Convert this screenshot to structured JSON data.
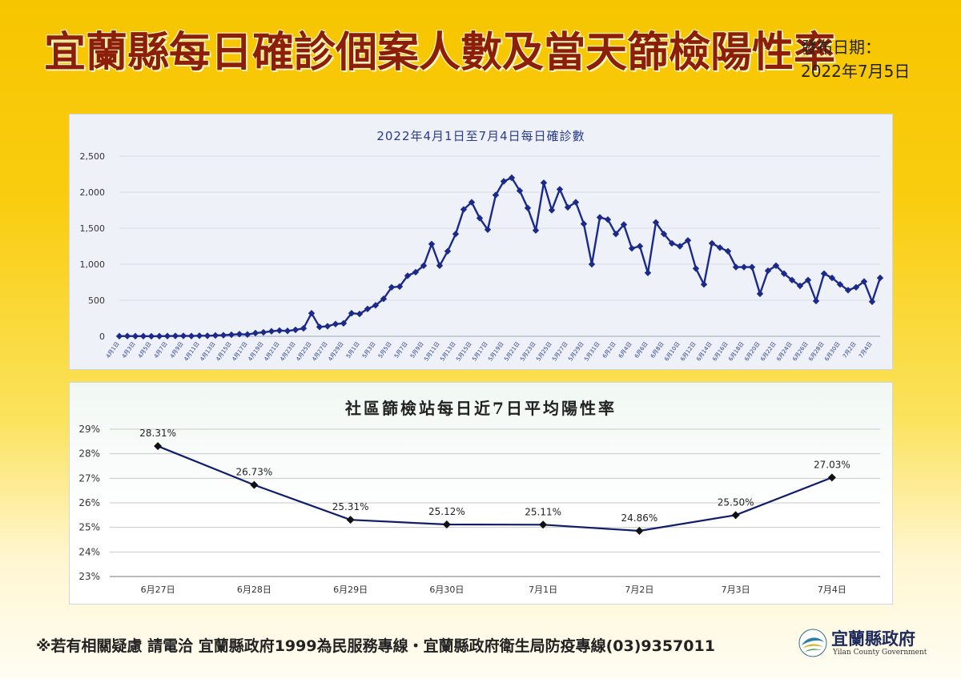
{
  "header": {
    "title": "宜蘭縣每日確診個案人數及當天篩檢陽性率",
    "publish_label": "發布日期：",
    "publish_date": "2022年7月5日"
  },
  "footer": {
    "contact": "※若有相關疑慮 請電洽  宜蘭縣政府1999為民服務專線・宜蘭縣政府衛生局防疫專線(03)9357011",
    "logo_cn": "宜蘭縣政府",
    "logo_en": "Yilan County Government"
  },
  "colors": {
    "series_line": "#1b2a8a",
    "series_marker": "#1b2a8a",
    "positivity_line": "#0f1d6b"
  },
  "chart_data": [
    {
      "type": "line",
      "title": "2022年4月1日至7月4日每日確診數",
      "ylim": [
        0,
        2500
      ],
      "yticks": [
        0,
        500,
        1000,
        1500,
        2000,
        2500
      ],
      "ytick_labels": [
        "0",
        "500",
        "1,000",
        "1,500",
        "2,000",
        "2,500"
      ],
      "grid": true,
      "x_tick_labels": [
        "4月1日",
        "4月3日",
        "4月5日",
        "4月7日",
        "4月9日",
        "4月11日",
        "4月13日",
        "4月15日",
        "4月17日",
        "4月19日",
        "4月21日",
        "4月23日",
        "4月25日",
        "4月27日",
        "4月29日",
        "5月1日",
        "5月3日",
        "5月5日",
        "5月7日",
        "5月9日",
        "5月11日",
        "5月13日",
        "5月15日",
        "5月17日",
        "5月19日",
        "5月21日",
        "5月23日",
        "5月25日",
        "5月27日",
        "5月29日",
        "5月31日",
        "6月2日",
        "6月4日",
        "6月6日",
        "6月8日",
        "6月10日",
        "6月12日",
        "6月14日",
        "6月16日",
        "6月18日",
        "6月20日",
        "6月22日",
        "6月24日",
        "6月26日",
        "6月28日",
        "6月30日",
        "7月2日",
        "7月4日"
      ],
      "values": [
        2,
        3,
        2,
        2,
        1,
        2,
        3,
        5,
        6,
        4,
        8,
        7,
        12,
        15,
        22,
        30,
        25,
        45,
        55,
        70,
        80,
        75,
        90,
        110,
        320,
        130,
        140,
        170,
        180,
        320,
        310,
        380,
        430,
        520,
        680,
        690,
        840,
        890,
        980,
        1280,
        980,
        1180,
        1420,
        1760,
        1860,
        1640,
        1480,
        1960,
        2150,
        2200,
        2020,
        1780,
        1470,
        2130,
        1750,
        2040,
        1790,
        1860,
        1560,
        1000,
        1650,
        1620,
        1420,
        1550,
        1220,
        1250,
        880,
        1580,
        1420,
        1290,
        1250,
        1330,
        940,
        720,
        1290,
        1230,
        1180,
        960,
        960,
        960,
        590,
        910,
        980,
        870,
        780,
        700,
        780,
        490,
        870,
        810,
        720,
        640,
        680,
        760,
        480,
        810
      ]
    },
    {
      "type": "line",
      "title": "社區篩檢站每日近7日平均陽性率",
      "categories": [
        "6月27日",
        "6月28日",
        "6月29日",
        "6月30日",
        "7月1日",
        "7月2日",
        "7月3日",
        "7月4日"
      ],
      "values": [
        28.31,
        26.73,
        25.31,
        25.12,
        25.11,
        24.86,
        25.5,
        27.03
      ],
      "data_labels": [
        "28.31%",
        "26.73%",
        "25.31%",
        "25.12%",
        "25.11%",
        "24.86%",
        "25.50%",
        "27.03%"
      ],
      "ylim": [
        23,
        29
      ],
      "yticks": [
        23,
        24,
        25,
        26,
        27,
        28,
        29
      ],
      "ytick_labels": [
        "23%",
        "24%",
        "25%",
        "26%",
        "27%",
        "28%",
        "29%"
      ],
      "grid": true
    }
  ]
}
